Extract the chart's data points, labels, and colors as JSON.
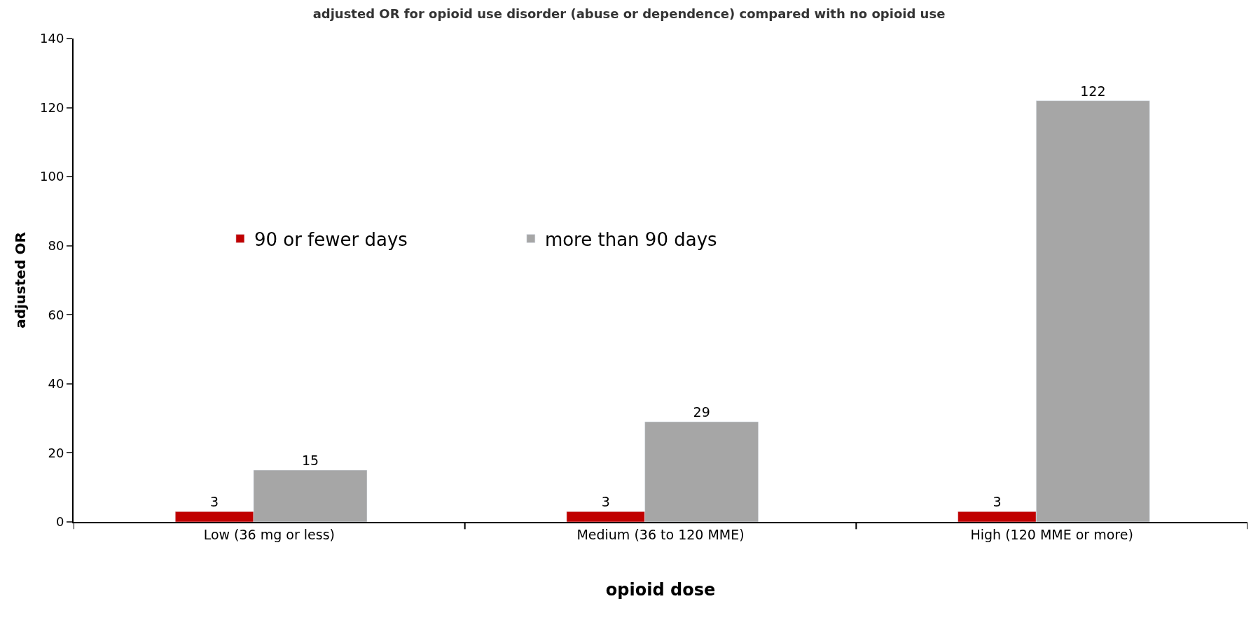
{
  "chart_data": {
    "type": "bar",
    "title": "adjusted OR for opioid use disorder (abuse or dependence) compared with no opioid use",
    "xlabel": "opioid dose",
    "ylabel": "adjusted OR",
    "categories": [
      "Low (36 mg or less)",
      "Medium (36 to 120 MME)",
      "High (120 MME or more)"
    ],
    "series": [
      {
        "name": "90 or fewer days",
        "color": "#c00000",
        "values": [
          3,
          3,
          3
        ]
      },
      {
        "name": "more than 90 days",
        "color": "#a6a6a6",
        "values": [
          15,
          29,
          122
        ]
      }
    ],
    "ylim": [
      0,
      140
    ],
    "yticks": [
      0,
      20,
      40,
      60,
      80,
      100,
      120,
      140
    ],
    "data_labels": true,
    "legend": "top left"
  }
}
